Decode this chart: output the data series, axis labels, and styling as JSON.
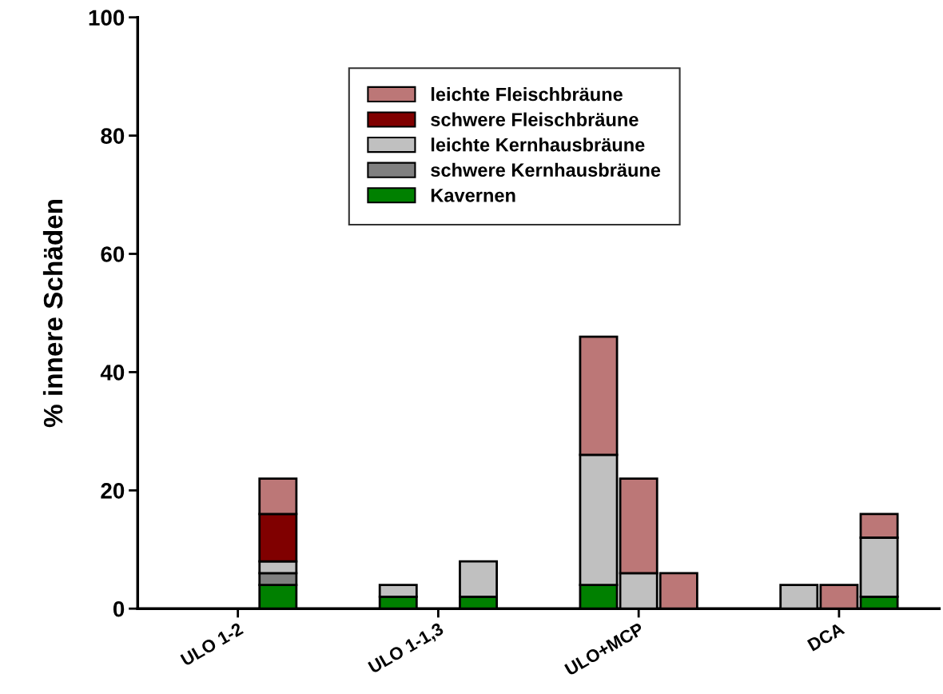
{
  "chart_data": {
    "type": "bar",
    "stacked": true,
    "ylabel": "% innere Schäden",
    "categories": [
      null,
      null,
      "ULO 1-2",
      null,
      null,
      null,
      null,
      "ULO 1-1,3",
      null,
      null,
      null,
      null,
      "ULO+MCP",
      null,
      null,
      null,
      null,
      "DCA",
      null,
      null
    ],
    "series": [
      {
        "name": "Kavernen",
        "color": "#008000",
        "values": [
          null,
          null,
          null,
          4,
          null,
          null,
          2,
          null,
          2,
          null,
          null,
          4,
          null,
          null,
          null,
          null,
          null,
          null,
          2,
          null
        ]
      },
      {
        "name": "schwere Kernhausbräune",
        "color": "#808080",
        "values": [
          null,
          null,
          null,
          2,
          null,
          null,
          null,
          null,
          null,
          null,
          null,
          null,
          null,
          null,
          null,
          null,
          null,
          null,
          null,
          null
        ]
      },
      {
        "name": "leichte Kernhausbräune",
        "color": "#c0c0c0",
        "values": [
          null,
          null,
          null,
          2,
          null,
          null,
          2,
          null,
          6,
          null,
          null,
          22,
          6,
          null,
          null,
          null,
          4,
          null,
          10,
          null
        ]
      },
      {
        "name": "schwere Fleischbräune",
        "color": "#800000",
        "values": [
          null,
          null,
          null,
          8,
          null,
          null,
          null,
          null,
          null,
          null,
          null,
          null,
          null,
          null,
          null,
          null,
          null,
          null,
          null,
          null
        ]
      },
      {
        "name": "leichte Fleischbräune",
        "color": "#bc7777",
        "values": [
          null,
          null,
          null,
          6,
          null,
          null,
          null,
          null,
          null,
          null,
          null,
          20,
          16,
          6,
          null,
          null,
          null,
          4,
          4,
          null
        ]
      }
    ],
    "ylim": [
      0,
      100
    ],
    "yticks": [
      0,
      20,
      40,
      60,
      80,
      100
    ],
    "legend": "top",
    "grid": false
  }
}
